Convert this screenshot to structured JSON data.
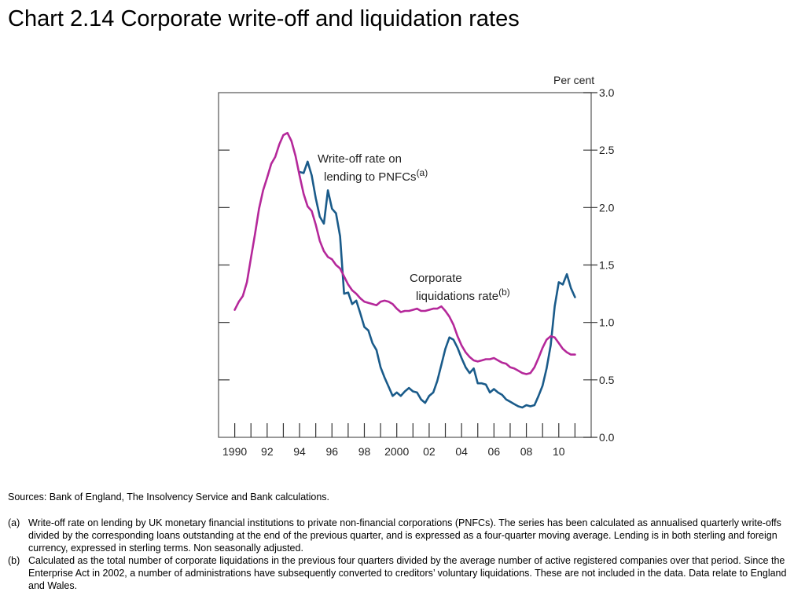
{
  "title": "Chart 2.14  Corporate write-off and liquidation rates",
  "sources": "Sources:  Bank of England, The Insolvency Service and Bank calculations.",
  "notes": [
    {
      "label": "(a)",
      "text": "Write-off rate on lending by UK monetary financial institutions to private non-financial corporations (PNFCs).  The series has been calculated as annualised quarterly write-offs divided by the corresponding loans outstanding at the end of the previous quarter, and is expressed as a four-quarter moving average.  Lending is in both sterling and foreign currency, expressed in sterling terms.  Non seasonally adjusted."
    },
    {
      "label": "(b)",
      "text": "Calculated as the total number of corporate liquidations in the previous four quarters divided by the average number of active registered companies over that period.  Since the Enterprise Act in 2002, a number of administrations have subsequently converted to creditors’ voluntary liquidations.  These are not included in the data.  Data relate to England and Wales."
    }
  ],
  "chart_data": {
    "type": "line",
    "title": "",
    "ylabel": "Per cent",
    "xlabel": "",
    "xlim": [
      1989,
      2012
    ],
    "ylim": [
      0.0,
      3.0
    ],
    "grid": false,
    "x_ticks": [
      1990,
      1991,
      1992,
      1993,
      1994,
      1995,
      1996,
      1997,
      1998,
      1999,
      2000,
      2001,
      2002,
      2003,
      2004,
      2005,
      2006,
      2007,
      2008,
      2009,
      2010,
      2011
    ],
    "x_tick_labels": [
      {
        "x": 1990,
        "label": "1990"
      },
      {
        "x": 1992,
        "label": "92"
      },
      {
        "x": 1994,
        "label": "94"
      },
      {
        "x": 1996,
        "label": "96"
      },
      {
        "x": 1998,
        "label": "98"
      },
      {
        "x": 2000,
        "label": "2000"
      },
      {
        "x": 2002,
        "label": "02"
      },
      {
        "x": 2004,
        "label": "04"
      },
      {
        "x": 2006,
        "label": "06"
      },
      {
        "x": 2008,
        "label": "08"
      },
      {
        "x": 2010,
        "label": "10"
      }
    ],
    "y_ticks": [
      {
        "value": 0.0,
        "label": "0.0"
      },
      {
        "value": 0.5,
        "label": "0.5"
      },
      {
        "value": 1.0,
        "label": "1.0"
      },
      {
        "value": 1.5,
        "label": "1.5"
      },
      {
        "value": 2.0,
        "label": "2.0"
      },
      {
        "value": 2.5,
        "label": "2.5"
      },
      {
        "value": 3.0,
        "label": "3.0"
      }
    ],
    "series": [
      {
        "name": "Write-off rate on lending to PNFCs(a)",
        "label_lines": [
          "Write-off rate on",
          "lending to PNFCs"
        ],
        "label_sup": "(a)",
        "color": "#1a5b8a",
        "points": [
          [
            1994.0,
            2.31
          ],
          [
            1994.25,
            2.3
          ],
          [
            1994.5,
            2.4
          ],
          [
            1994.75,
            2.28
          ],
          [
            1995.0,
            2.08
          ],
          [
            1995.25,
            1.92
          ],
          [
            1995.5,
            1.86
          ],
          [
            1995.75,
            2.15
          ],
          [
            1996.0,
            1.99
          ],
          [
            1996.25,
            1.95
          ],
          [
            1996.5,
            1.75
          ],
          [
            1996.75,
            1.25
          ],
          [
            1997.0,
            1.26
          ],
          [
            1997.25,
            1.16
          ],
          [
            1997.5,
            1.19
          ],
          [
            1997.75,
            1.08
          ],
          [
            1998.0,
            0.96
          ],
          [
            1998.25,
            0.93
          ],
          [
            1998.5,
            0.82
          ],
          [
            1998.75,
            0.76
          ],
          [
            1999.0,
            0.61
          ],
          [
            1999.25,
            0.52
          ],
          [
            1999.5,
            0.44
          ],
          [
            1999.75,
            0.36
          ],
          [
            2000.0,
            0.39
          ],
          [
            2000.25,
            0.36
          ],
          [
            2000.5,
            0.4
          ],
          [
            2000.75,
            0.43
          ],
          [
            2001.0,
            0.4
          ],
          [
            2001.25,
            0.39
          ],
          [
            2001.5,
            0.33
          ],
          [
            2001.75,
            0.3
          ],
          [
            2002.0,
            0.36
          ],
          [
            2002.25,
            0.39
          ],
          [
            2002.5,
            0.49
          ],
          [
            2002.75,
            0.63
          ],
          [
            2003.0,
            0.77
          ],
          [
            2003.25,
            0.87
          ],
          [
            2003.5,
            0.85
          ],
          [
            2003.75,
            0.78
          ],
          [
            2004.0,
            0.69
          ],
          [
            2004.25,
            0.61
          ],
          [
            2004.5,
            0.56
          ],
          [
            2004.75,
            0.6
          ],
          [
            2005.0,
            0.47
          ],
          [
            2005.25,
            0.47
          ],
          [
            2005.5,
            0.46
          ],
          [
            2005.75,
            0.39
          ],
          [
            2006.0,
            0.42
          ],
          [
            2006.25,
            0.39
          ],
          [
            2006.5,
            0.37
          ],
          [
            2006.75,
            0.33
          ],
          [
            2007.0,
            0.31
          ],
          [
            2007.25,
            0.29
          ],
          [
            2007.5,
            0.27
          ],
          [
            2007.75,
            0.26
          ],
          [
            2008.0,
            0.28
          ],
          [
            2008.25,
            0.27
          ],
          [
            2008.5,
            0.28
          ],
          [
            2008.75,
            0.36
          ],
          [
            2009.0,
            0.45
          ],
          [
            2009.25,
            0.6
          ],
          [
            2009.5,
            0.8
          ],
          [
            2009.75,
            1.14
          ],
          [
            2010.0,
            1.35
          ],
          [
            2010.25,
            1.33
          ],
          [
            2010.5,
            1.42
          ],
          [
            2010.75,
            1.3
          ],
          [
            2011.0,
            1.22
          ]
        ]
      },
      {
        "name": "Corporate liquidations rate(b)",
        "label_lines": [
          "Corporate",
          "liquidations rate"
        ],
        "label_sup": "(b)",
        "color": "#b5289a",
        "points": [
          [
            1990.0,
            1.11
          ],
          [
            1990.25,
            1.18
          ],
          [
            1990.5,
            1.23
          ],
          [
            1990.75,
            1.35
          ],
          [
            1991.0,
            1.56
          ],
          [
            1991.25,
            1.77
          ],
          [
            1991.5,
            1.99
          ],
          [
            1991.75,
            2.15
          ],
          [
            1992.0,
            2.26
          ],
          [
            1992.25,
            2.38
          ],
          [
            1992.5,
            2.44
          ],
          [
            1992.75,
            2.55
          ],
          [
            1993.0,
            2.63
          ],
          [
            1993.25,
            2.65
          ],
          [
            1993.5,
            2.58
          ],
          [
            1993.75,
            2.45
          ],
          [
            1994.0,
            2.28
          ],
          [
            1994.25,
            2.12
          ],
          [
            1994.5,
            2.01
          ],
          [
            1994.75,
            1.97
          ],
          [
            1995.0,
            1.85
          ],
          [
            1995.25,
            1.71
          ],
          [
            1995.5,
            1.62
          ],
          [
            1995.75,
            1.57
          ],
          [
            1996.0,
            1.55
          ],
          [
            1996.25,
            1.5
          ],
          [
            1996.5,
            1.47
          ],
          [
            1996.75,
            1.4
          ],
          [
            1997.0,
            1.33
          ],
          [
            1997.25,
            1.28
          ],
          [
            1997.5,
            1.25
          ],
          [
            1997.75,
            1.21
          ],
          [
            1998.0,
            1.18
          ],
          [
            1998.25,
            1.17
          ],
          [
            1998.5,
            1.16
          ],
          [
            1998.75,
            1.15
          ],
          [
            1999.0,
            1.18
          ],
          [
            1999.25,
            1.19
          ],
          [
            1999.5,
            1.18
          ],
          [
            1999.75,
            1.16
          ],
          [
            2000.0,
            1.12
          ],
          [
            2000.25,
            1.09
          ],
          [
            2000.5,
            1.1
          ],
          [
            2000.75,
            1.1
          ],
          [
            2001.0,
            1.11
          ],
          [
            2001.25,
            1.12
          ],
          [
            2001.5,
            1.1
          ],
          [
            2001.75,
            1.1
          ],
          [
            2002.0,
            1.11
          ],
          [
            2002.25,
            1.12
          ],
          [
            2002.5,
            1.12
          ],
          [
            2002.75,
            1.14
          ],
          [
            2003.0,
            1.1
          ],
          [
            2003.25,
            1.05
          ],
          [
            2003.5,
            0.98
          ],
          [
            2003.75,
            0.88
          ],
          [
            2004.0,
            0.8
          ],
          [
            2004.25,
            0.74
          ],
          [
            2004.5,
            0.7
          ],
          [
            2004.75,
            0.67
          ],
          [
            2005.0,
            0.66
          ],
          [
            2005.25,
            0.67
          ],
          [
            2005.5,
            0.68
          ],
          [
            2005.75,
            0.68
          ],
          [
            2006.0,
            0.69
          ],
          [
            2006.25,
            0.67
          ],
          [
            2006.5,
            0.65
          ],
          [
            2006.75,
            0.64
          ],
          [
            2007.0,
            0.61
          ],
          [
            2007.25,
            0.6
          ],
          [
            2007.5,
            0.58
          ],
          [
            2007.75,
            0.56
          ],
          [
            2008.0,
            0.55
          ],
          [
            2008.25,
            0.56
          ],
          [
            2008.5,
            0.61
          ],
          [
            2008.75,
            0.69
          ],
          [
            2009.0,
            0.78
          ],
          [
            2009.25,
            0.85
          ],
          [
            2009.5,
            0.88
          ],
          [
            2009.75,
            0.87
          ],
          [
            2010.0,
            0.82
          ],
          [
            2010.25,
            0.77
          ],
          [
            2010.5,
            0.74
          ],
          [
            2010.75,
            0.72
          ],
          [
            2011.0,
            0.72
          ]
        ]
      }
    ]
  }
}
